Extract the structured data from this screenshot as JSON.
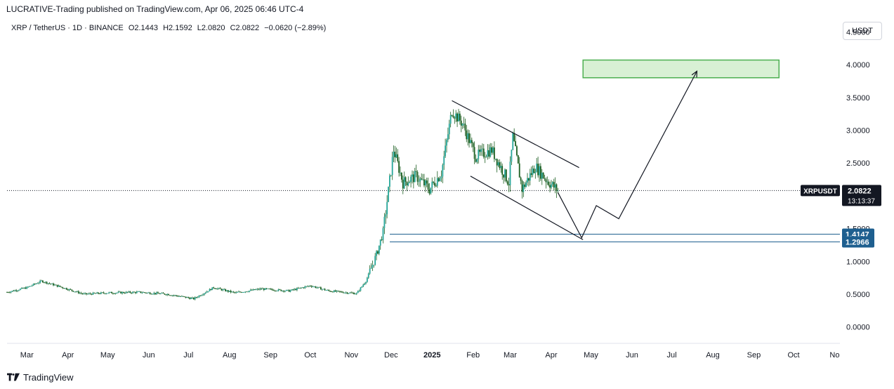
{
  "header": {
    "publisher": "LUCRATIVE-Trading published on TradingView.com, Apr 06, 2025 06:46 UTC-4"
  },
  "legend": {
    "symbol": "XRP / TetherUS · 1D · BINANCE",
    "open": "O2.1443",
    "high": "H2.1592",
    "low": "L2.0820",
    "close": "C2.0822",
    "change": "−0.0620 (−2.89%)"
  },
  "currency_button": "USDT",
  "price_axis": {
    "ticks": [
      "4.5000",
      "4.0000",
      "3.5000",
      "3.0000",
      "2.5000",
      "1.5000",
      "1.0000",
      "0.5000",
      "0.0000"
    ],
    "tick_values": [
      4.5,
      4.0,
      3.5,
      3.0,
      2.5,
      1.5,
      1.0,
      0.5,
      0.0
    ]
  },
  "price_labels": {
    "symbol_tag": "XRPUSDT",
    "last_price": "2.0822",
    "countdown": "13:13:37",
    "support_upper": "1.4147",
    "support_lower": "1.2966"
  },
  "time_axis": {
    "labels": [
      "Mar",
      "Apr",
      "May",
      "Jun",
      "Jul",
      "Aug",
      "Sep",
      "Oct",
      "Nov",
      "Dec",
      "2025",
      "Feb",
      "Mar",
      "Apr",
      "May",
      "Jun",
      "Jul",
      "Aug",
      "Sep",
      "Oct",
      "No"
    ]
  },
  "footer": {
    "brand": "TradingView"
  },
  "colors": {
    "up": "#26a69a",
    "candle": "#1b5e20",
    "target_zone": "#d8f0d4",
    "target_border": "#4caf50",
    "support": "#1e5f8f",
    "label_bg": "#1e5f8f",
    "symbol_tag_bg": "#131722"
  },
  "chart_data": {
    "type": "candlestick",
    "title": "XRP / TetherUS · 1D · BINANCE",
    "ylim": [
      -0.25,
      4.75
    ],
    "x_range": [
      "2024-02-15",
      "2025-11-05"
    ],
    "close_path": [
      [
        "2024-02-15",
        0.53
      ],
      [
        "2024-03-01",
        0.6
      ],
      [
        "2024-03-12",
        0.7
      ],
      [
        "2024-03-25",
        0.62
      ],
      [
        "2024-04-13",
        0.5
      ],
      [
        "2024-05-01",
        0.52
      ],
      [
        "2024-05-25",
        0.53
      ],
      [
        "2024-06-15",
        0.5
      ],
      [
        "2024-07-05",
        0.43
      ],
      [
        "2024-07-20",
        0.6
      ],
      [
        "2024-08-05",
        0.52
      ],
      [
        "2024-08-25",
        0.58
      ],
      [
        "2024-09-15",
        0.55
      ],
      [
        "2024-10-01",
        0.63
      ],
      [
        "2024-10-15",
        0.55
      ],
      [
        "2024-11-05",
        0.51
      ],
      [
        "2024-11-12",
        0.7
      ],
      [
        "2024-11-20",
        1.1
      ],
      [
        "2024-11-25",
        1.45
      ],
      [
        "2024-12-03",
        2.7
      ],
      [
        "2024-12-10",
        2.2
      ],
      [
        "2024-12-20",
        2.3
      ],
      [
        "2024-12-30",
        2.1
      ],
      [
        "2025-01-08",
        2.35
      ],
      [
        "2025-01-16",
        3.3
      ],
      [
        "2025-01-24",
        3.1
      ],
      [
        "2025-02-03",
        2.6
      ],
      [
        "2025-02-15",
        2.7
      ],
      [
        "2025-02-28",
        2.2
      ],
      [
        "2025-03-03",
        2.9
      ],
      [
        "2025-03-10",
        2.1
      ],
      [
        "2025-03-20",
        2.45
      ],
      [
        "2025-03-28",
        2.25
      ],
      [
        "2025-04-06",
        2.08
      ]
    ],
    "annotations": {
      "falling_channel_upper": [
        [
          "2025-01-16",
          3.45
        ],
        [
          "2025-04-22",
          2.43
        ]
      ],
      "falling_channel_lower": [
        [
          "2025-01-30",
          2.3
        ],
        [
          "2025-04-25",
          1.33
        ]
      ],
      "projected_path": [
        [
          "2025-04-06",
          2.05
        ],
        [
          "2025-04-24",
          1.36
        ],
        [
          "2025-05-05",
          1.85
        ],
        [
          "2025-05-22",
          1.65
        ],
        [
          "2025-07-20",
          3.9
        ]
      ],
      "target_zone": {
        "from": "2025-04-25",
        "to": "2025-09-20",
        "low": 3.8,
        "high": 4.07
      },
      "support_lines": [
        1.4147,
        1.2966
      ]
    }
  }
}
